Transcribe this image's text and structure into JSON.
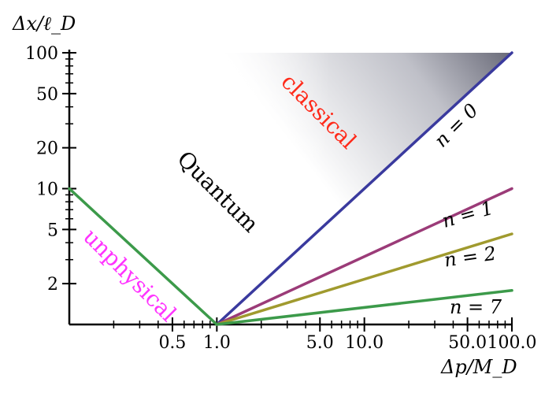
{
  "chart_data": {
    "type": "line",
    "xlabel": "Δp/M_D",
    "ylabel": "Δx/ℓ_D",
    "x_scale": "log",
    "y_scale": "log",
    "xlim": [
      0.1,
      100
    ],
    "ylim": [
      1,
      100
    ],
    "x_ticks": [
      0.5,
      1.0,
      5.0,
      10.0,
      50.0,
      100.0
    ],
    "x_tick_labels": [
      "0.5",
      "1.0",
      "5.0",
      "10.0",
      "50.0",
      "100.0"
    ],
    "y_ticks": [
      2,
      5,
      10,
      20,
      50,
      100
    ],
    "y_tick_labels": [
      "2",
      "5",
      "10",
      "20",
      "50",
      "100"
    ],
    "series": [
      {
        "name": "n = 0",
        "color": "#3a3a9e",
        "x": [
          1,
          100
        ],
        "y": [
          1,
          100
        ]
      },
      {
        "name": "n = 1",
        "color": "#9b3b78",
        "x": [
          1,
          100
        ],
        "y": [
          1,
          10
        ]
      },
      {
        "name": "n = 2",
        "color": "#a09a2e",
        "x": [
          1,
          100
        ],
        "y": [
          1,
          4.64
        ]
      },
      {
        "name": "n = 7",
        "color": "#3c9a4a",
        "x": [
          1,
          100
        ],
        "y": [
          1,
          1.78
        ]
      },
      {
        "name": "",
        "color": "#3c9a4a",
        "x": [
          0.1,
          1
        ],
        "y": [
          10,
          1
        ]
      }
    ],
    "region_labels": [
      {
        "text": "classical",
        "color": "#ff2a1a"
      },
      {
        "text": "Quantum",
        "color": "#000000"
      },
      {
        "text": "unphysical",
        "color": "#ff33ff"
      }
    ],
    "line_labels": [
      "n = 0",
      "n = 1",
      "n = 2",
      "n = 7"
    ]
  }
}
